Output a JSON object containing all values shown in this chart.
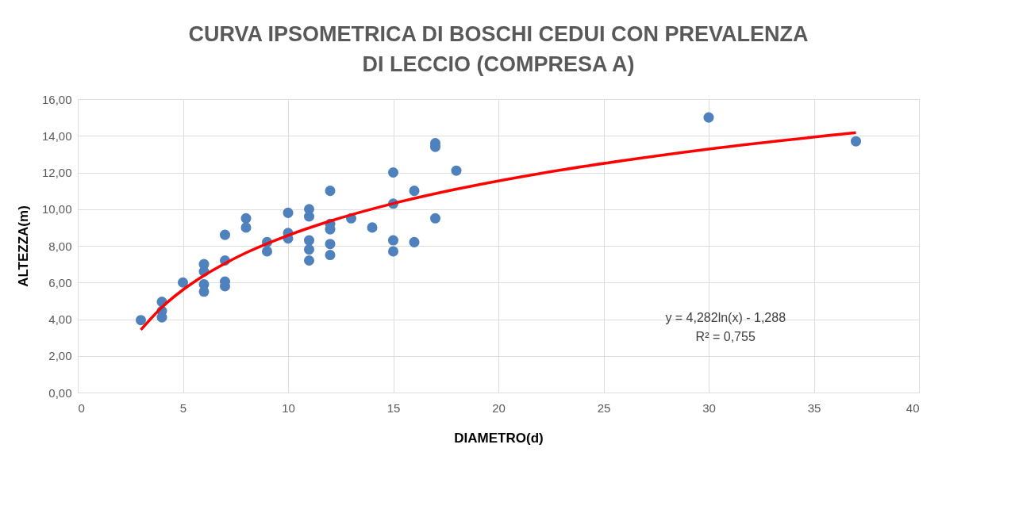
{
  "chart_data": {
    "type": "scatter",
    "title": "CURVA IPSOMETRICA DI BOSCHI CEDUI CON PREVALENZA DI LECCIO (COMPRESA A)",
    "xlabel": "DIAMETRO(d)",
    "ylabel": "ALTEZZA(m)",
    "xlim": [
      0,
      40
    ],
    "xticks": [
      0,
      5,
      10,
      15,
      20,
      25,
      30,
      35,
      40
    ],
    "ylim": [
      0,
      16
    ],
    "yticks": [
      {
        "value": 0,
        "label": "0,00"
      },
      {
        "value": 2,
        "label": "2,00"
      },
      {
        "value": 4,
        "label": "4,00"
      },
      {
        "value": 6,
        "label": "6,00"
      },
      {
        "value": 8,
        "label": "8,00"
      },
      {
        "value": 10,
        "label": "10,00"
      },
      {
        "value": 12,
        "label": "12,00"
      },
      {
        "value": 14,
        "label": "14,00"
      },
      {
        "value": 16,
        "label": "16,00"
      }
    ],
    "grid": true,
    "marker": "circle",
    "annotations": [
      "y = 4,282ln(x) - 1,288",
      "R² = 0,755"
    ],
    "series": [
      {
        "color": "#4f81bd",
        "x": [
          3,
          4,
          4,
          4,
          5,
          6,
          6,
          6,
          6,
          7,
          7,
          7,
          7,
          8,
          8,
          9,
          9,
          10,
          10,
          10,
          11,
          11,
          11,
          11,
          11,
          12,
          12,
          12,
          12,
          12,
          13,
          14,
          15,
          15,
          15,
          15,
          16,
          16,
          17,
          17,
          17,
          18,
          30,
          37
        ],
        "values": [
          3.95,
          4.95,
          4.45,
          4.1,
          6.0,
          7.0,
          6.6,
          5.9,
          5.5,
          8.6,
          7.2,
          6.05,
          5.8,
          9.5,
          9.0,
          8.2,
          7.7,
          9.8,
          8.7,
          8.4,
          10.0,
          9.6,
          8.3,
          7.8,
          7.2,
          11.0,
          9.2,
          8.9,
          8.1,
          7.5,
          9.5,
          9.0,
          12.0,
          10.3,
          8.3,
          7.7,
          11.0,
          8.2,
          13.6,
          13.4,
          9.5,
          12.1,
          15.0,
          13.7
        ]
      },
      {
        "type": "line",
        "color": "#ff0000",
        "marker": "none",
        "x": [
          3,
          4,
          5,
          6,
          7,
          8,
          10,
          12,
          15,
          18,
          22,
          26,
          30,
          37
        ],
        "values": [
          3.42,
          4.65,
          5.6,
          6.38,
          7.04,
          7.62,
          8.57,
          9.35,
          10.31,
          11.09,
          11.95,
          12.66,
          13.28,
          14.17
        ]
      }
    ]
  }
}
